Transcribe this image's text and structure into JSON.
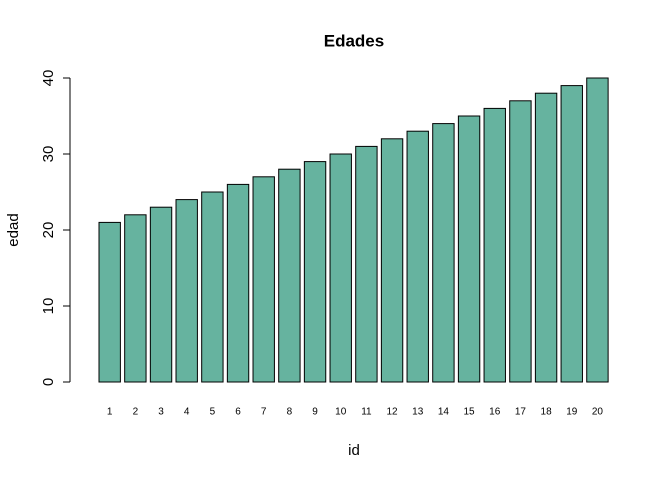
{
  "chart_data": {
    "type": "bar",
    "title": "Edades",
    "x_label": "id",
    "y_label": "edad",
    "categories": [
      "1",
      "2",
      "3",
      "4",
      "5",
      "6",
      "7",
      "8",
      "9",
      "10",
      "11",
      "12",
      "13",
      "14",
      "15",
      "16",
      "17",
      "18",
      "19",
      "20"
    ],
    "values": [
      21,
      22,
      23,
      24,
      25,
      26,
      27,
      28,
      29,
      30,
      31,
      32,
      33,
      34,
      35,
      36,
      37,
      38,
      39,
      40
    ],
    "color": "#66b39f",
    "ylim": [
      0,
      40
    ],
    "yticks": [
      0,
      10,
      20,
      30,
      40
    ]
  }
}
